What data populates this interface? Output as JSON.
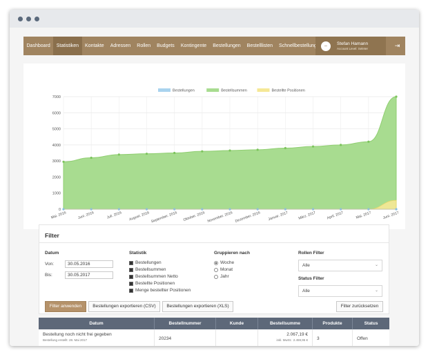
{
  "nav": {
    "items": [
      "Dashboard",
      "Statistiken",
      "Kontakte",
      "Adressen",
      "Rollen",
      "Budgets",
      "Kontingente",
      "Bestellungen",
      "Bestelllisten",
      "Schnellbestellung"
    ],
    "active_index": 1
  },
  "user": {
    "name": "Stefan Hamann",
    "role": "Account Level: Seleter",
    "avatar_icon": "user-avatar-icon",
    "logout_icon": "logout-icon"
  },
  "chart_data": {
    "type": "area",
    "legend": [
      "Bestellungen",
      "Bestellsummen",
      "Bestellte Positionen"
    ],
    "legend_position": "top",
    "colors": [
      "#a9d3ee",
      "#a8dc90",
      "#f5e896"
    ],
    "categories": [
      "Mai. 2016",
      "Juni. 2016",
      "Juli. 2016",
      "August. 2016",
      "September. 2016",
      "Oktober. 2016",
      "November. 2016",
      "Dezember. 2016",
      "Januar. 2017",
      "März. 2017",
      "April. 2017",
      "Mai. 2017",
      "Juni. 2017"
    ],
    "series": [
      {
        "name": "Bestellungen",
        "values": [
          0,
          0,
          0,
          0,
          0,
          0,
          0,
          0,
          0,
          0,
          0,
          0,
          0
        ]
      },
      {
        "name": "Bestellsummen",
        "values": [
          2950,
          3200,
          3400,
          3450,
          3500,
          3600,
          3650,
          3700,
          3800,
          3900,
          4000,
          4200,
          7000
        ]
      },
      {
        "name": "Bestellte Positionen",
        "values": [
          0,
          0,
          0,
          0,
          0,
          0,
          0,
          0,
          0,
          0,
          0,
          0,
          550
        ]
      }
    ],
    "y_ticks": [
      0,
      1000,
      2000,
      3000,
      4000,
      5000,
      6000,
      7000
    ],
    "ylim": [
      0,
      7000
    ],
    "grid": true
  },
  "filter": {
    "title": "Filter",
    "datum": {
      "heading": "Datum",
      "von_label": "Von:",
      "von_value": "30.05.2016",
      "bis_label": "Bis:",
      "bis_value": "30.05.2017"
    },
    "statistik": {
      "heading": "Statistik",
      "options": [
        "Bestellungen",
        "Bestellsummen",
        "Bestellsummen Netto",
        "Bestellte Positionen",
        "Menge bestellter Positionen"
      ]
    },
    "gruppieren": {
      "heading": "Gruppieren nach",
      "options": [
        "Woche",
        "Monat",
        "Jahr"
      ],
      "selected": "Woche"
    },
    "rollen": {
      "heading": "Rollen Filter",
      "value": "Alle"
    },
    "status": {
      "heading": "Status Filter",
      "value": "Alle"
    },
    "buttons": {
      "apply": "Filter anwenden",
      "export_csv": "Bestellungen exportieren (CSV)",
      "export_xls": "Bestellungen exportieren (XLS)",
      "reset": "Filter zurücksetzen"
    }
  },
  "table": {
    "headers": [
      "Datum",
      "Bestellnummer",
      "Kunde",
      "Bestellsumme",
      "Produkte",
      "Status"
    ],
    "rows": [
      {
        "datum": "Bestellung noch nicht frei gegeben",
        "datum_sub": "Bestellung erstellt: 28. Mai 2017",
        "nummer": "20234",
        "kunde": "",
        "summe": "2.067,19 €",
        "summe_sub": "inkl. MwSt.: 2.459,95 €",
        "produkte": "3",
        "status": "Offen"
      }
    ]
  }
}
